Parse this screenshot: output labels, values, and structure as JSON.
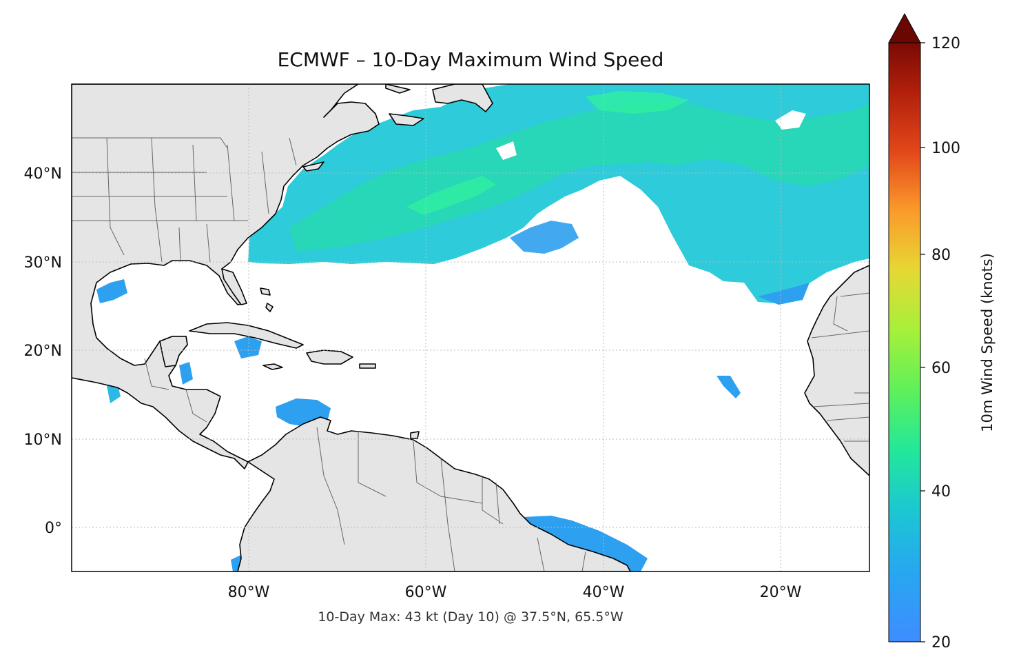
{
  "map": {
    "title": "ECMWF – 10-Day Maximum Wind Speed",
    "annotation": "10-Day Max: 43 kt (Day 10) @ 37.5°N, 65.5°W",
    "lat_labels": [
      "40°N",
      "30°N",
      "20°N",
      "10°N",
      "0°"
    ],
    "lon_labels": [
      "80°W",
      "60°W",
      "40°W",
      "20°W"
    ],
    "extent": {
      "lon_min": -100,
      "lon_max": -10,
      "lat_min": -5,
      "lat_max": 50
    },
    "colors": {
      "land": "#e5e5e5",
      "coast": "#000000",
      "borders": "#666666",
      "grid": "#bbbbbb"
    }
  },
  "colorbar": {
    "label": "10m Wind Speed (knots)",
    "ticks": [
      "120",
      "100",
      "80",
      "60",
      "40",
      "20"
    ],
    "min": 20,
    "max": 120,
    "extend": "max",
    "colors": [
      "#3f8cff",
      "#1fb7e0",
      "#22e89a",
      "#a6f03a",
      "#e6d834",
      "#fb9a2b",
      "#e2461a",
      "#9c1508",
      "#6b0703"
    ]
  },
  "wind_field": {
    "max_speed_kt": 43,
    "max_day": 10,
    "max_location": "37.5°N, 65.5°W"
  }
}
